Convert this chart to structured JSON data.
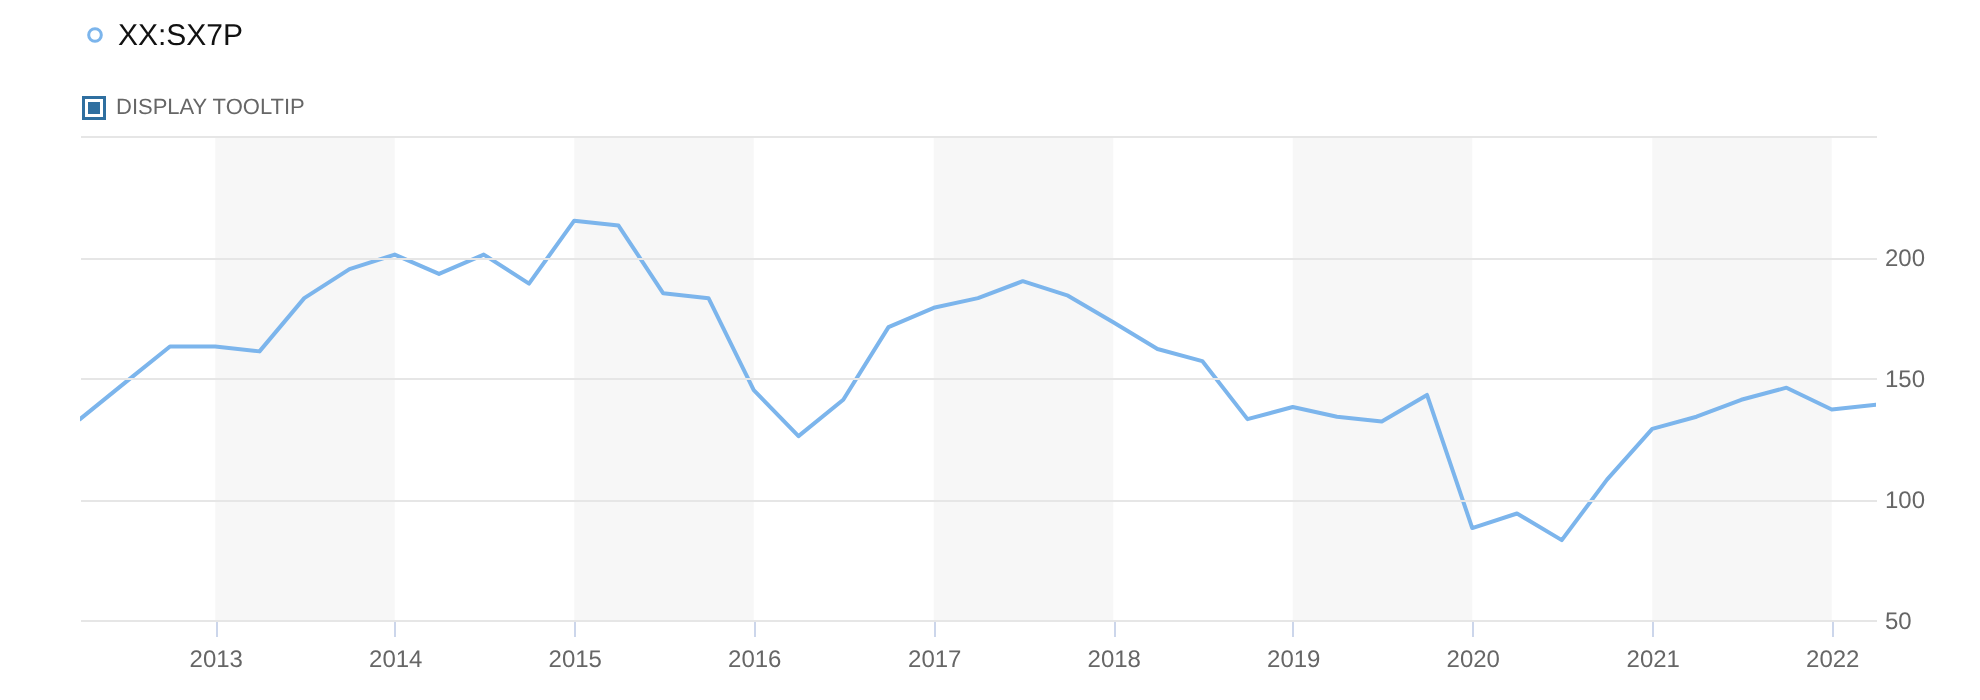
{
  "chart_data": {
    "type": "line",
    "x": [
      "2012-04",
      "2012-07",
      "2012-10",
      "2013-01",
      "2013-04",
      "2013-07",
      "2013-10",
      "2014-01",
      "2014-04",
      "2014-07",
      "2014-10",
      "2015-01",
      "2015-04",
      "2015-07",
      "2015-10",
      "2016-01",
      "2016-04",
      "2016-07",
      "2016-10",
      "2017-01",
      "2017-04",
      "2017-07",
      "2017-10",
      "2018-01",
      "2018-04",
      "2018-07",
      "2018-10",
      "2019-01",
      "2019-04",
      "2019-07",
      "2019-10",
      "2020-01",
      "2020-04",
      "2020-07",
      "2020-10",
      "2021-01",
      "2021-04",
      "2021-07",
      "2021-10",
      "2022-01",
      "2022-04"
    ],
    "series": [
      {
        "name": "XX:SX7P",
        "color": "#7cb5ec",
        "values": [
          133,
          148,
          163,
          163,
          161,
          183,
          195,
          201,
          193,
          201,
          189,
          215,
          213,
          185,
          183,
          145,
          126,
          141,
          171,
          179,
          183,
          190,
          184,
          173,
          162,
          157,
          133,
          138,
          134,
          132,
          143,
          88,
          94,
          83,
          108,
          129,
          134,
          141,
          146,
          137,
          139
        ]
      }
    ],
    "xlim": [
      "2012-04",
      "2022-04"
    ],
    "xticks": [
      "2013",
      "2014",
      "2015",
      "2016",
      "2017",
      "2018",
      "2019",
      "2020",
      "2021",
      "2022"
    ],
    "ylim": [
      50,
      250
    ],
    "yticks": [
      50,
      100,
      150,
      200,
      {
        "value": 250,
        "label": null
      }
    ],
    "bands": [
      {
        "axis": "x",
        "from": "2013",
        "to": "2014",
        "color": "#f7f7f7"
      },
      {
        "axis": "x",
        "from": "2015",
        "to": "2016",
        "color": "#f7f7f7"
      },
      {
        "axis": "x",
        "from": "2017",
        "to": "2018",
        "color": "#f7f7f7"
      },
      {
        "axis": "x",
        "from": "2019",
        "to": "2020",
        "color": "#f7f7f7"
      },
      {
        "axis": "x",
        "from": "2021",
        "to": "2022",
        "color": "#f7f7f7"
      }
    ],
    "annotations": [
      "DISPLAY TOOLTIP"
    ],
    "grid": "y",
    "legend": "top left",
    "marker": "none",
    "line_style": "solid"
  }
}
